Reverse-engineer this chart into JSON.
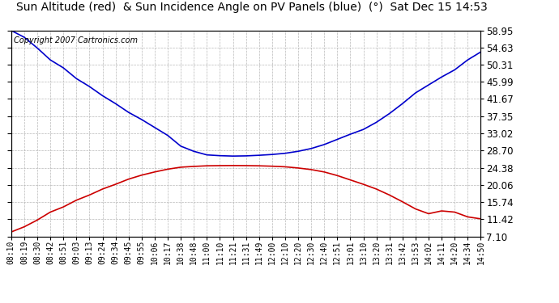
{
  "title": "Sun Altitude (red)  & Sun Incidence Angle on PV Panels (blue)  (°)  Sat Dec 15 14:53",
  "copyright": "Copyright 2007 Cartronics.com",
  "yticks": [
    7.1,
    11.42,
    15.74,
    20.06,
    24.38,
    28.7,
    33.02,
    37.35,
    41.67,
    45.99,
    50.31,
    54.63,
    58.95
  ],
  "xtick_labels": [
    "08:10",
    "08:19",
    "08:30",
    "08:42",
    "08:51",
    "09:03",
    "09:13",
    "09:24",
    "09:34",
    "09:45",
    "09:55",
    "10:06",
    "10:17",
    "10:38",
    "10:48",
    "11:00",
    "11:10",
    "11:21",
    "11:31",
    "11:49",
    "12:00",
    "12:10",
    "12:20",
    "12:30",
    "12:40",
    "12:51",
    "13:01",
    "13:10",
    "13:20",
    "13:31",
    "13:42",
    "13:53",
    "14:02",
    "14:11",
    "14:20",
    "14:34",
    "14:50"
  ],
  "ymin": 7.1,
  "ymax": 58.95,
  "blue_line_color": "#0000cc",
  "red_line_color": "#cc0000",
  "bg_color": "#ffffff",
  "grid_color": "#b0b0b0",
  "title_fontsize": 10,
  "copyright_fontsize": 7,
  "tick_fontsize": 7,
  "blue_data": [
    58.9,
    57.2,
    54.5,
    51.5,
    49.5,
    46.8,
    44.8,
    42.5,
    40.5,
    38.3,
    36.5,
    34.5,
    32.5,
    29.8,
    28.5,
    27.6,
    27.4,
    27.3,
    27.35,
    27.5,
    27.7,
    28.0,
    28.5,
    29.2,
    30.2,
    31.5,
    32.8,
    34.0,
    35.8,
    38.0,
    40.5,
    43.2,
    45.2,
    47.2,
    49.0,
    51.5,
    53.5
  ],
  "red_data": [
    8.2,
    9.5,
    11.2,
    13.2,
    14.5,
    16.2,
    17.5,
    19.0,
    20.2,
    21.5,
    22.5,
    23.3,
    24.0,
    24.5,
    24.7,
    24.85,
    24.9,
    24.92,
    24.9,
    24.85,
    24.75,
    24.6,
    24.3,
    23.9,
    23.3,
    22.4,
    21.3,
    20.2,
    19.0,
    17.5,
    15.8,
    14.0,
    12.8,
    13.5,
    13.2,
    12.0,
    11.5
  ]
}
